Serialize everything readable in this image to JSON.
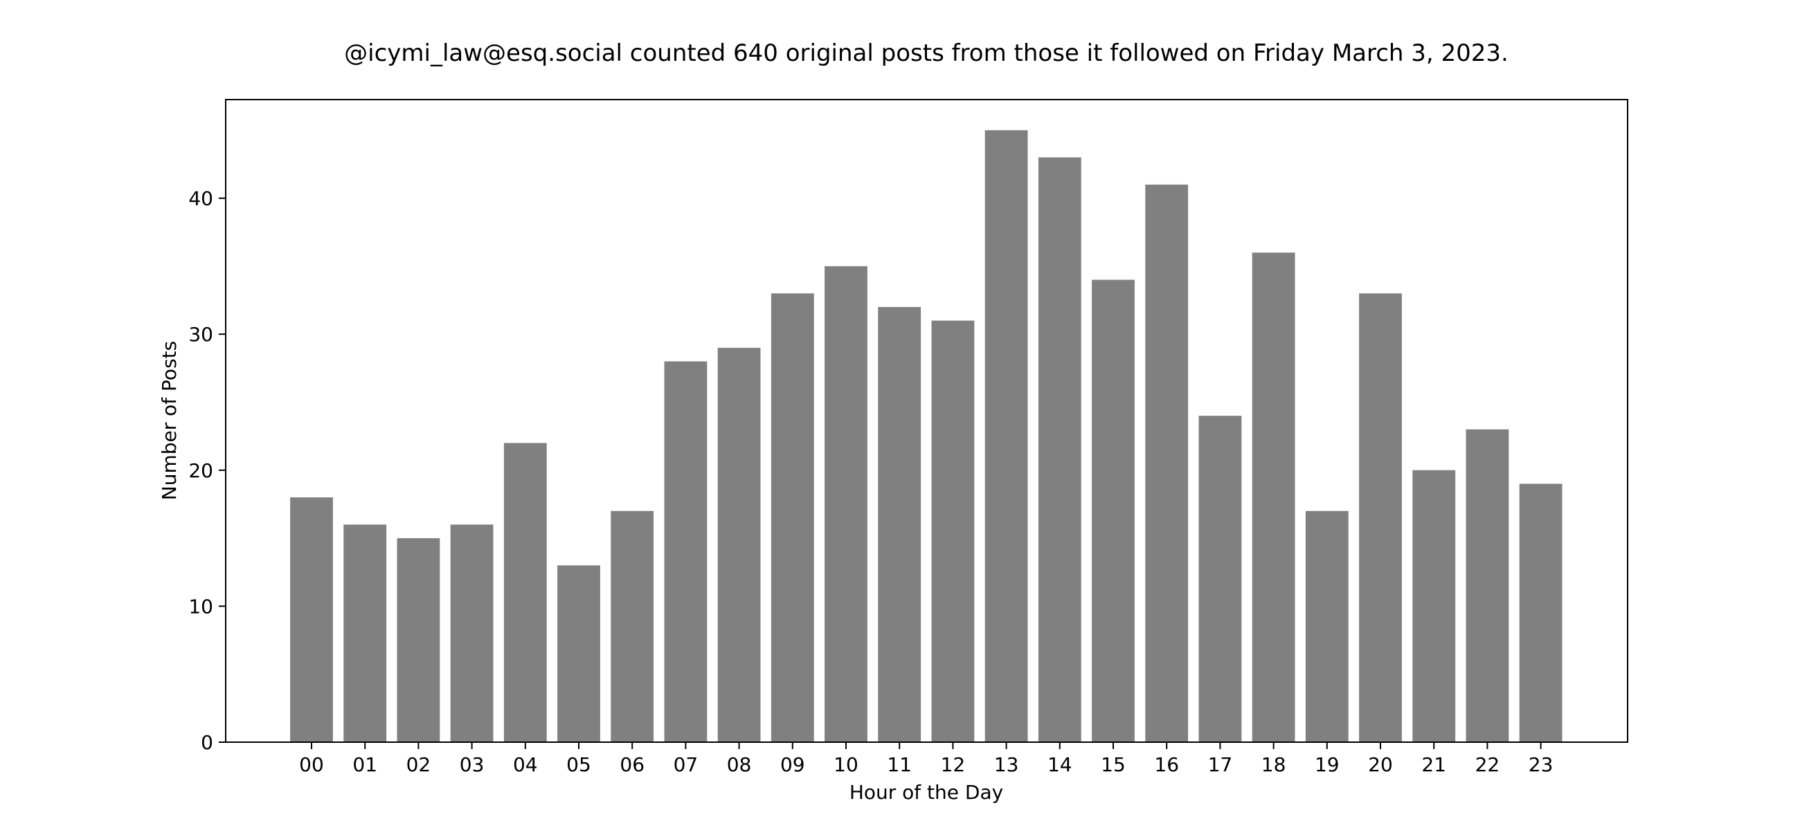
{
  "chart_data": {
    "type": "bar",
    "title": "@icymi_law@esq.social counted 640 original posts from those it followed on Friday March 3, 2023.",
    "xlabel": "Hour of the Day",
    "ylabel": "Number of Posts",
    "categories": [
      "00",
      "01",
      "02",
      "03",
      "04",
      "05",
      "06",
      "07",
      "08",
      "09",
      "10",
      "11",
      "12",
      "13",
      "14",
      "15",
      "16",
      "17",
      "18",
      "19",
      "20",
      "21",
      "22",
      "23"
    ],
    "values": [
      18,
      16,
      15,
      16,
      22,
      13,
      17,
      28,
      29,
      33,
      35,
      32,
      31,
      45,
      43,
      34,
      41,
      24,
      36,
      17,
      33,
      20,
      23,
      19
    ],
    "ylim": [
      0,
      47.25
    ],
    "yticks": [
      0,
      10,
      20,
      30,
      40
    ],
    "grid": false,
    "bar_color": "#808080",
    "axis_color": "#000000"
  }
}
